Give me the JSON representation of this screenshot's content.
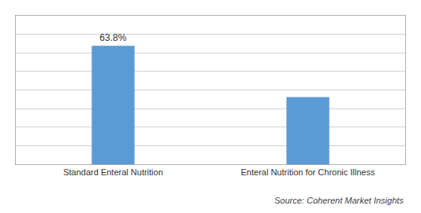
{
  "chart_data": {
    "type": "bar",
    "categories": [
      "Standard Enteral Nutrition",
      "Enteral Nutrition for Chronic Illness"
    ],
    "values": [
      63.8,
      36.2
    ],
    "value_labels": [
      "63.8%",
      null
    ],
    "data_labels": true,
    "color": "#5b9bd5",
    "ylim": [
      0,
      80
    ],
    "yticks": [
      0,
      10,
      20,
      30,
      40,
      50,
      60,
      70,
      80
    ],
    "grid": true,
    "tick_labels": "x",
    "source": "Source: Coherent Market Insights"
  }
}
